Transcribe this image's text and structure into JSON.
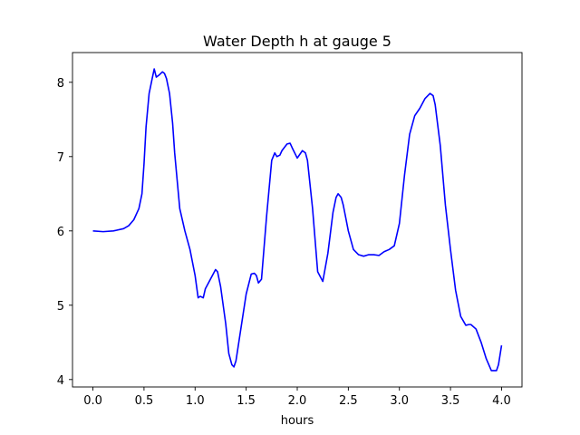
{
  "chart_data": {
    "type": "line",
    "title": "Water Depth h at gauge 5",
    "xlabel": "hours",
    "ylabel": "",
    "xlim": [
      -0.2,
      4.2
    ],
    "ylim": [
      3.9,
      8.4
    ],
    "grid": false,
    "xticks": [
      0.0,
      0.5,
      1.0,
      1.5,
      2.0,
      2.5,
      3.0,
      3.5,
      4.0
    ],
    "xtick_labels": [
      "0.0",
      "0.5",
      "1.0",
      "1.5",
      "2.0",
      "2.5",
      "3.0",
      "3.5",
      "4.0"
    ],
    "yticks": [
      4,
      5,
      6,
      7,
      8
    ],
    "ytick_labels": [
      "4",
      "5",
      "6",
      "7",
      "8"
    ],
    "colors": {
      "line": "#0000ff"
    },
    "series": [
      {
        "x": [
          0.0,
          0.1,
          0.2,
          0.3,
          0.35,
          0.4,
          0.45,
          0.48,
          0.5,
          0.52,
          0.55,
          0.58,
          0.6,
          0.62,
          0.65,
          0.68,
          0.7,
          0.72,
          0.75,
          0.78,
          0.8,
          0.85,
          0.9,
          0.95,
          1.0,
          1.03,
          1.05,
          1.08,
          1.1,
          1.15,
          1.2,
          1.22,
          1.25,
          1.3,
          1.33,
          1.36,
          1.38,
          1.4,
          1.45,
          1.5,
          1.55,
          1.58,
          1.6,
          1.62,
          1.65,
          1.7,
          1.75,
          1.78,
          1.8,
          1.83,
          1.85,
          1.9,
          1.93,
          1.95,
          2.0,
          2.05,
          2.08,
          2.1,
          2.15,
          2.2,
          2.25,
          2.3,
          2.35,
          2.38,
          2.4,
          2.43,
          2.45,
          2.5,
          2.55,
          2.6,
          2.65,
          2.7,
          2.75,
          2.8,
          2.85,
          2.9,
          2.95,
          3.0,
          3.05,
          3.1,
          3.15,
          3.2,
          3.25,
          3.3,
          3.33,
          3.35,
          3.4,
          3.45,
          3.5,
          3.55,
          3.6,
          3.65,
          3.68,
          3.7,
          3.75,
          3.8,
          3.85,
          3.9,
          3.95,
          3.97,
          4.0
        ],
        "y": [
          6.0,
          5.99,
          6.0,
          6.03,
          6.07,
          6.15,
          6.3,
          6.5,
          6.9,
          7.4,
          7.85,
          8.05,
          8.18,
          8.07,
          8.1,
          8.14,
          8.12,
          8.05,
          7.85,
          7.45,
          7.05,
          6.3,
          6.0,
          5.75,
          5.4,
          5.1,
          5.12,
          5.1,
          5.22,
          5.35,
          5.48,
          5.45,
          5.25,
          4.75,
          4.35,
          4.2,
          4.17,
          4.25,
          4.7,
          5.15,
          5.42,
          5.43,
          5.4,
          5.3,
          5.35,
          6.2,
          6.95,
          7.05,
          7.0,
          7.02,
          7.08,
          7.17,
          7.18,
          7.12,
          6.98,
          7.08,
          7.05,
          6.95,
          6.3,
          5.45,
          5.32,
          5.7,
          6.25,
          6.45,
          6.5,
          6.45,
          6.35,
          6.0,
          5.75,
          5.68,
          5.66,
          5.68,
          5.68,
          5.67,
          5.72,
          5.75,
          5.8,
          6.1,
          6.75,
          7.3,
          7.55,
          7.65,
          7.78,
          7.85,
          7.82,
          7.7,
          7.15,
          6.35,
          5.75,
          5.2,
          4.85,
          4.73,
          4.74,
          4.74,
          4.68,
          4.5,
          4.28,
          4.12,
          4.12,
          4.2,
          4.46
        ]
      }
    ]
  }
}
